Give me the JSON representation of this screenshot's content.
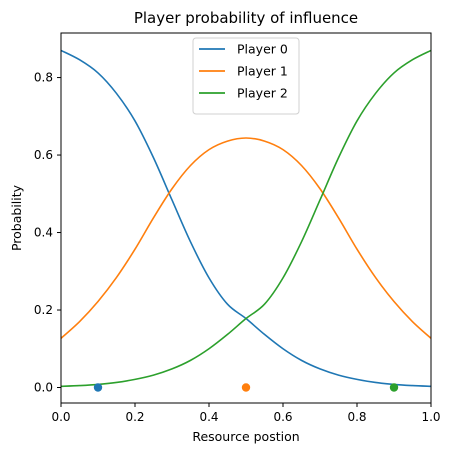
{
  "chart_data": {
    "type": "line",
    "title": "Player probability of influence",
    "xlabel": "Resource postion",
    "ylabel": "Probability",
    "xlim": [
      0.0,
      1.0
    ],
    "ylim": [
      -0.04,
      0.915
    ],
    "xticks": [
      "0.0",
      "0.2",
      "0.4",
      "0.6",
      "0.8",
      "1.0"
    ],
    "yticks": [
      "0.0",
      "0.2",
      "0.4",
      "0.6",
      "0.8"
    ],
    "legend_position": "top-center",
    "grid": false,
    "x": [
      0.0,
      0.05,
      0.1,
      0.15,
      0.2,
      0.25,
      0.3,
      0.35,
      0.4,
      0.45,
      0.5,
      0.55,
      0.6,
      0.65,
      0.7,
      0.75,
      0.8,
      0.85,
      0.9,
      0.95,
      1.0
    ],
    "series": [
      {
        "name": "Player 0",
        "color": "#1f77b4",
        "values": [
          0.87,
          0.846,
          0.812,
          0.759,
          0.688,
          0.593,
          0.484,
          0.376,
          0.283,
          0.215,
          0.178,
          0.137,
          0.1,
          0.07,
          0.048,
          0.032,
          0.021,
          0.013,
          0.008,
          0.005,
          0.003
        ]
      },
      {
        "name": "Player 1",
        "color": "#ff7f0e",
        "values": [
          0.127,
          0.17,
          0.222,
          0.284,
          0.357,
          0.438,
          0.513,
          0.573,
          0.614,
          0.636,
          0.644,
          0.636,
          0.614,
          0.573,
          0.513,
          0.438,
          0.357,
          0.284,
          0.222,
          0.17,
          0.127
        ]
      },
      {
        "name": "Player 2",
        "color": "#2ca02c",
        "values": [
          0.003,
          0.005,
          0.008,
          0.013,
          0.021,
          0.032,
          0.048,
          0.07,
          0.1,
          0.137,
          0.178,
          0.215,
          0.283,
          0.376,
          0.484,
          0.593,
          0.688,
          0.759,
          0.812,
          0.846,
          0.87
        ]
      }
    ],
    "points": [
      {
        "x": 0.1,
        "y": 0.0,
        "color": "#1f77b4"
      },
      {
        "x": 0.5,
        "y": 0.0,
        "color": "#ff7f0e"
      },
      {
        "x": 0.9,
        "y": 0.0,
        "color": "#2ca02c"
      }
    ]
  }
}
